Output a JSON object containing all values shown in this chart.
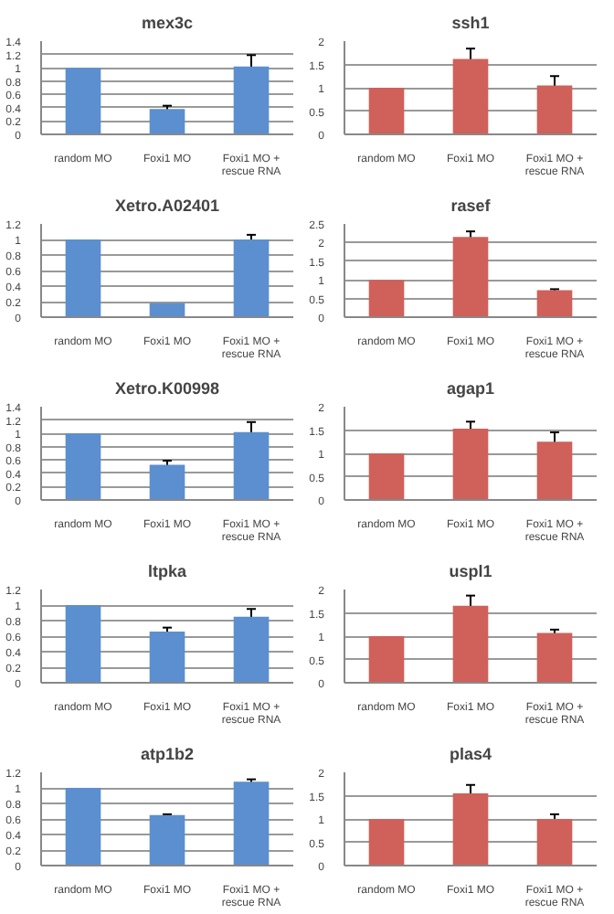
{
  "chart_data": [
    {
      "type": "bar",
      "title": "mex3c",
      "categories": [
        "random MO",
        "Foxi1 MO",
        "Foxi1 MO + rescue RNA"
      ],
      "values": [
        1,
        0.38,
        1.02
      ],
      "errors": [
        null,
        0.05,
        0.17
      ],
      "color": "#5b8fcf",
      "ylim": [
        0,
        1.4
      ],
      "yticks": [
        0,
        0.2,
        0.4,
        0.6,
        0.8,
        1,
        1.2,
        1.4
      ],
      "grid": "y"
    },
    {
      "type": "bar",
      "title": "ssh1",
      "categories": [
        "random MO",
        "Foxi1 MO",
        "Foxi1 MO + rescue RNA"
      ],
      "values": [
        1,
        1.62,
        1.05
      ],
      "errors": [
        null,
        0.22,
        0.2
      ],
      "color": "#d0605a",
      "ylim": [
        0,
        2
      ],
      "yticks": [
        0,
        0.5,
        1,
        1.5,
        2
      ],
      "grid": "y"
    },
    {
      "type": "bar",
      "title": "Xetro.A02401",
      "categories": [
        "random MO",
        "Foxi1 MO",
        "Foxi1 MO + rescue RNA"
      ],
      "values": [
        1,
        0.18,
        1.0
      ],
      "errors": [
        null,
        null,
        0.06
      ],
      "color": "#5b8fcf",
      "ylim": [
        0,
        1.2
      ],
      "yticks": [
        0,
        0.2,
        0.4,
        0.6,
        0.8,
        1,
        1.2
      ],
      "grid": "y"
    },
    {
      "type": "bar",
      "title": "rasef",
      "categories": [
        "random MO",
        "Foxi1 MO",
        "Foxi1 MO + rescue RNA"
      ],
      "values": [
        1,
        2.15,
        0.72
      ],
      "errors": [
        null,
        0.15,
        0.03
      ],
      "color": "#d0605a",
      "ylim": [
        0,
        2.5
      ],
      "yticks": [
        0,
        0.5,
        1,
        1.5,
        2,
        2.5
      ],
      "grid": "y"
    },
    {
      "type": "bar",
      "title": "Xetro.K00998",
      "categories": [
        "random MO",
        "Foxi1 MO",
        "Foxi1 MO + rescue RNA"
      ],
      "values": [
        1,
        0.53,
        1.02
      ],
      "errors": [
        null,
        0.06,
        0.15
      ],
      "color": "#5b8fcf",
      "ylim": [
        0,
        1.4
      ],
      "yticks": [
        0,
        0.2,
        0.4,
        0.6,
        0.8,
        1,
        1.2,
        1.4
      ],
      "grid": "y"
    },
    {
      "type": "bar",
      "title": "agap1",
      "categories": [
        "random MO",
        "Foxi1 MO",
        "Foxi1 MO + rescue RNA"
      ],
      "values": [
        1,
        1.53,
        1.25
      ],
      "errors": [
        null,
        0.15,
        0.2
      ],
      "color": "#d0605a",
      "ylim": [
        0,
        2
      ],
      "yticks": [
        0,
        0.5,
        1,
        1.5,
        2
      ],
      "grid": "y"
    },
    {
      "type": "bar",
      "title": "ltpka",
      "categories": [
        "random MO",
        "Foxi1 MO",
        "Foxi1 MO + rescue RNA"
      ],
      "values": [
        1,
        0.66,
        0.85
      ],
      "errors": [
        null,
        0.05,
        0.1
      ],
      "color": "#5b8fcf",
      "ylim": [
        0,
        1.2
      ],
      "yticks": [
        0,
        0.2,
        0.4,
        0.6,
        0.8,
        1,
        1.2
      ],
      "grid": "y"
    },
    {
      "type": "bar",
      "title": "uspl1",
      "categories": [
        "random MO",
        "Foxi1 MO",
        "Foxi1 MO + rescue RNA"
      ],
      "values": [
        1,
        1.65,
        1.07
      ],
      "errors": [
        null,
        0.22,
        0.07
      ],
      "color": "#d0605a",
      "ylim": [
        0,
        2
      ],
      "yticks": [
        0,
        0.5,
        1,
        1.5,
        2
      ],
      "grid": "y"
    },
    {
      "type": "bar",
      "title": "atp1b2",
      "categories": [
        "random MO",
        "Foxi1 MO",
        "Foxi1 MO + rescue RNA"
      ],
      "values": [
        1,
        0.65,
        1.08
      ],
      "errors": [
        null,
        0.01,
        0.03
      ],
      "color": "#5b8fcf",
      "ylim": [
        0,
        1.2
      ],
      "yticks": [
        0,
        0.2,
        0.4,
        0.6,
        0.8,
        1,
        1.2
      ],
      "grid": "y"
    },
    {
      "type": "bar",
      "title": "plas4",
      "categories": [
        "random MO",
        "Foxi1 MO",
        "Foxi1 MO + rescue RNA"
      ],
      "values": [
        1,
        1.55,
        1.0
      ],
      "errors": [
        null,
        0.18,
        0.1
      ],
      "color": "#d0605a",
      "ylim": [
        0,
        2
      ],
      "yticks": [
        0,
        0.5,
        1,
        1.5,
        2
      ],
      "grid": "y"
    }
  ]
}
